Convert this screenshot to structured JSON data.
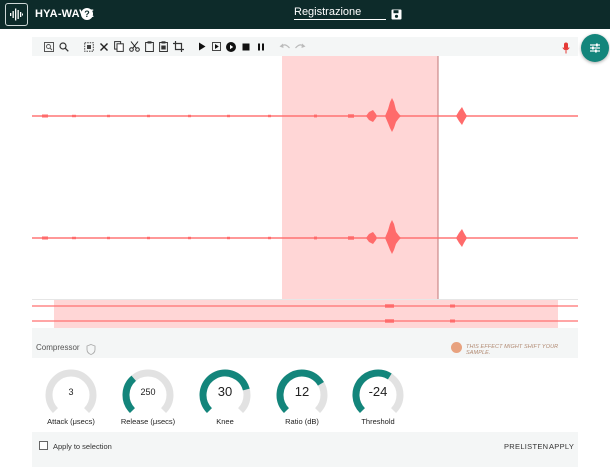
{
  "header": {
    "app_name": "HYA-WAVE",
    "help_icon": "?",
    "filename": "Registrazione",
    "background": "#0d2b2a"
  },
  "toolbar": {
    "icons": [
      "zoom-selection-icon",
      "zoom-icon",
      "select-all-icon",
      "clear-icon",
      "copy-icon",
      "cut-icon",
      "paste-icon",
      "paste-special-icon",
      "crop-icon",
      "play-icon",
      "play-selection-icon",
      "play-loop-icon",
      "stop-icon",
      "pause-icon",
      "undo-icon",
      "redo-icon",
      "mic-icon"
    ]
  },
  "waveform": {
    "channels": 2,
    "wave_color": "#ff6b6b",
    "selection_color": "#ffd6d6",
    "selection_from_fraction": 0.458,
    "selection_to_fraction": 0.744
  },
  "compressor": {
    "title": "Compressor",
    "warning": "THIS EFFECT MIGHT SHIFT YOUR SAMPLE.",
    "accent": "#13857b",
    "knobs": [
      {
        "value": "3",
        "label": "Attack (μsecs)",
        "fraction": 0.0
      },
      {
        "value": "250",
        "label": "Release (μsecs)",
        "fraction": 0.35
      },
      {
        "value": "30",
        "label": "Knee",
        "fraction": 0.78
      },
      {
        "value": "12",
        "label": "Ratio (dB)",
        "fraction": 0.72
      },
      {
        "value": "-24",
        "label": "Threshold",
        "fraction": 0.62
      }
    ],
    "apply_to_selection": "Apply to selection",
    "prelisten": "PRELISTEN",
    "apply": "APPLY"
  }
}
